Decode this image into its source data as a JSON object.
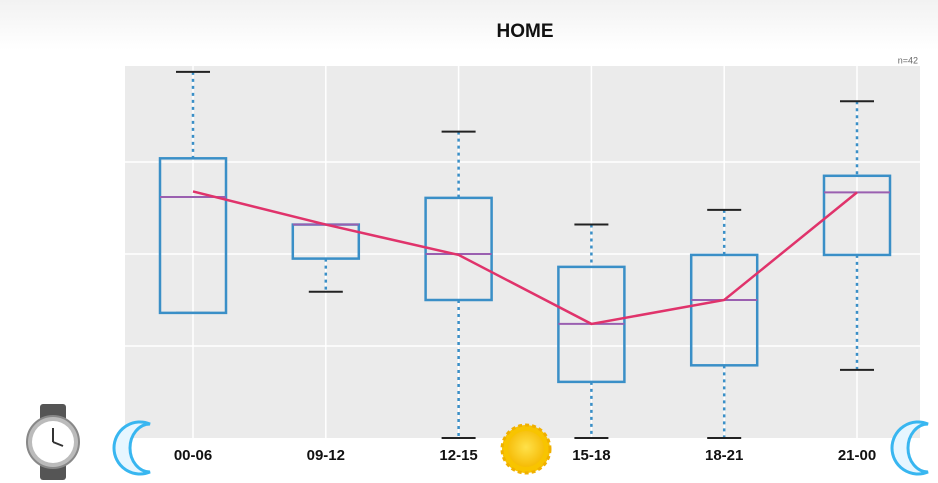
{
  "chart_data": {
    "type": "box",
    "title": "HOME",
    "annotation": "n=42",
    "categories": [
      "00-06",
      "09-12",
      "12-15",
      "15-18",
      "18-21",
      "21-00"
    ],
    "boxes": [
      {
        "min": 1.36,
        "q1": 1.36,
        "median": 2.62,
        "q3": 3.04,
        "max": 3.98
      },
      {
        "min": 1.59,
        "q1": 1.95,
        "median": 2.32,
        "q3": 2.32,
        "max": 2.32
      },
      {
        "min": 0,
        "q1": 1.5,
        "median": 2.0,
        "q3": 2.61,
        "max": 3.33
      },
      {
        "min": 0,
        "q1": 0.61,
        "median": 1.24,
        "q3": 1.86,
        "max": 2.32
      },
      {
        "min": 0,
        "q1": 0.79,
        "median": 1.5,
        "q3": 1.99,
        "max": 2.48
      },
      {
        "min": 0.74,
        "q1": 1.99,
        "median": 2.67,
        "q3": 2.85,
        "max": 3.66
      }
    ],
    "box_color": "#3a8fc7",
    "median_color": "#9a5fb0",
    "mean_line": {
      "color": "#e0336b",
      "values": [
        2.68,
        2.32,
        1.99,
        1.24,
        1.5,
        2.67
      ]
    },
    "ylim": [
      0,
      4
    ],
    "ygrid": [
      1,
      2,
      3
    ],
    "grid": true
  }
}
